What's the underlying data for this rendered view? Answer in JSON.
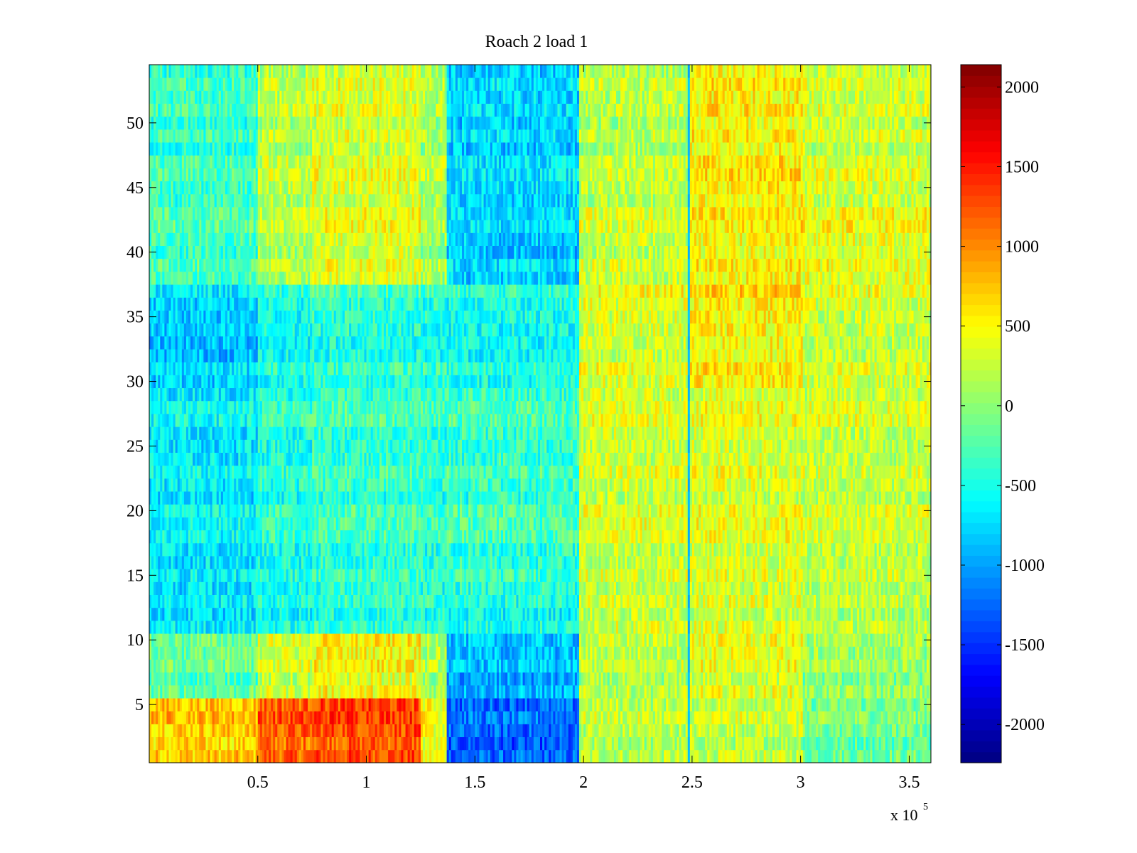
{
  "chart_data": {
    "type": "heatmap",
    "title": "Roach 2 load 1",
    "xlabel": "",
    "ylabel": "",
    "x_multiplier_label": "x 10",
    "x_multiplier_exponent": "5",
    "xlim": [
      0,
      3.6
    ],
    "ylim": [
      0.5,
      54.5
    ],
    "x_ticks": [
      {
        "value": 0.5,
        "label": "0.5"
      },
      {
        "value": 1.0,
        "label": "1"
      },
      {
        "value": 1.5,
        "label": "1.5"
      },
      {
        "value": 2.0,
        "label": "2"
      },
      {
        "value": 2.5,
        "label": "2.5"
      },
      {
        "value": 3.0,
        "label": "3"
      },
      {
        "value": 3.5,
        "label": "3.5"
      }
    ],
    "y_ticks": [
      {
        "value": 5,
        "label": "5"
      },
      {
        "value": 10,
        "label": "10"
      },
      {
        "value": 15,
        "label": "15"
      },
      {
        "value": 20,
        "label": "20"
      },
      {
        "value": 25,
        "label": "25"
      },
      {
        "value": 30,
        "label": "30"
      },
      {
        "value": 35,
        "label": "35"
      },
      {
        "value": 40,
        "label": "40"
      },
      {
        "value": 45,
        "label": "45"
      },
      {
        "value": 50,
        "label": "50"
      }
    ],
    "colorbar": {
      "colormap": "jet",
      "range": [
        -2240,
        2140
      ],
      "ticks": [
        {
          "value": 2000,
          "label": "2000"
        },
        {
          "value": 1500,
          "label": "1500"
        },
        {
          "value": 1000,
          "label": "1000"
        },
        {
          "value": 500,
          "label": "500"
        },
        {
          "value": 0,
          "label": "0"
        },
        {
          "value": -500,
          "label": "-500"
        },
        {
          "value": -1000,
          "label": "-1000"
        },
        {
          "value": -1500,
          "label": "-1500"
        },
        {
          "value": -2000,
          "label": "-2000"
        }
      ]
    },
    "x_segments": [
      {
        "x0": 0.0,
        "x1": 0.5,
        "col": "A"
      },
      {
        "x0": 0.5,
        "x1": 0.75,
        "col": "B"
      },
      {
        "x0": 0.75,
        "x1": 1.25,
        "col": "B2"
      },
      {
        "x0": 1.25,
        "x1": 1.37,
        "col": "C"
      },
      {
        "x0": 1.37,
        "x1": 1.98,
        "col": "D"
      },
      {
        "x0": 1.98,
        "x1": 2.49,
        "col": "E"
      },
      {
        "x0": 2.49,
        "x1": 3.01,
        "col": "F"
      },
      {
        "x0": 3.01,
        "x1": 3.6,
        "col": "G"
      }
    ],
    "row_bands": [
      {
        "y0": 0.5,
        "y1": 5.5,
        "means": {
          "A": 700,
          "B": 1150,
          "B2": 1250,
          "C": 400,
          "D": -1300,
          "E": 150,
          "F": 200,
          "G": -150
        }
      },
      {
        "y0": 5.5,
        "y1": 10.5,
        "means": {
          "A": -200,
          "B": 250,
          "B2": 450,
          "C": 100,
          "D": -950,
          "E": 150,
          "F": 350,
          "G": 0
        }
      },
      {
        "y0": 10.5,
        "y1": 13.5,
        "means": {
          "A": -700,
          "B": -550,
          "B2": -450,
          "C": -450,
          "D": -550,
          "E": 250,
          "F": 300,
          "G": 150
        }
      },
      {
        "y0": 13.5,
        "y1": 29.5,
        "means": {
          "A": -650,
          "B": -450,
          "B2": -350,
          "C": -400,
          "D": -350,
          "E": 300,
          "F": 350,
          "G": 250
        }
      },
      {
        "y0": 29.5,
        "y1": 37.5,
        "means": {
          "A": -800,
          "B": -500,
          "B2": -400,
          "C": -450,
          "D": -500,
          "E": 350,
          "F": 550,
          "G": 300
        }
      },
      {
        "y0": 37.5,
        "y1": 43.5,
        "means": {
          "A": -300,
          "B": 150,
          "B2": 350,
          "C": 100,
          "D": -800,
          "E": 250,
          "F": 500,
          "G": 400
        }
      },
      {
        "y0": 43.5,
        "y1": 54.5,
        "means": {
          "A": -350,
          "B": 200,
          "B2": 350,
          "C": 150,
          "D": -750,
          "E": 200,
          "F": 550,
          "G": 300
        }
      }
    ],
    "vertical_features": [
      {
        "x": 2.485,
        "value": -900
      }
    ]
  }
}
